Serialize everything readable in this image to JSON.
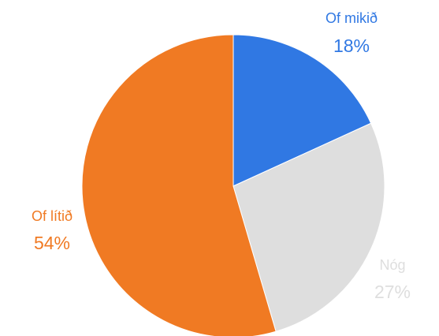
{
  "chart_data": {
    "type": "pie",
    "slices": [
      {
        "label": "Of mikið",
        "value": 18,
        "percent_label": "18%",
        "color": "#3078e3"
      },
      {
        "label": "Nóg",
        "value": 27,
        "percent_label": "27%",
        "color": "#dedede"
      },
      {
        "label": "Of lítið",
        "value": 54,
        "percent_label": "54%",
        "color": "#f07a23"
      }
    ],
    "start_angle_deg": 0,
    "direction": "clockwise",
    "legend": "none"
  }
}
